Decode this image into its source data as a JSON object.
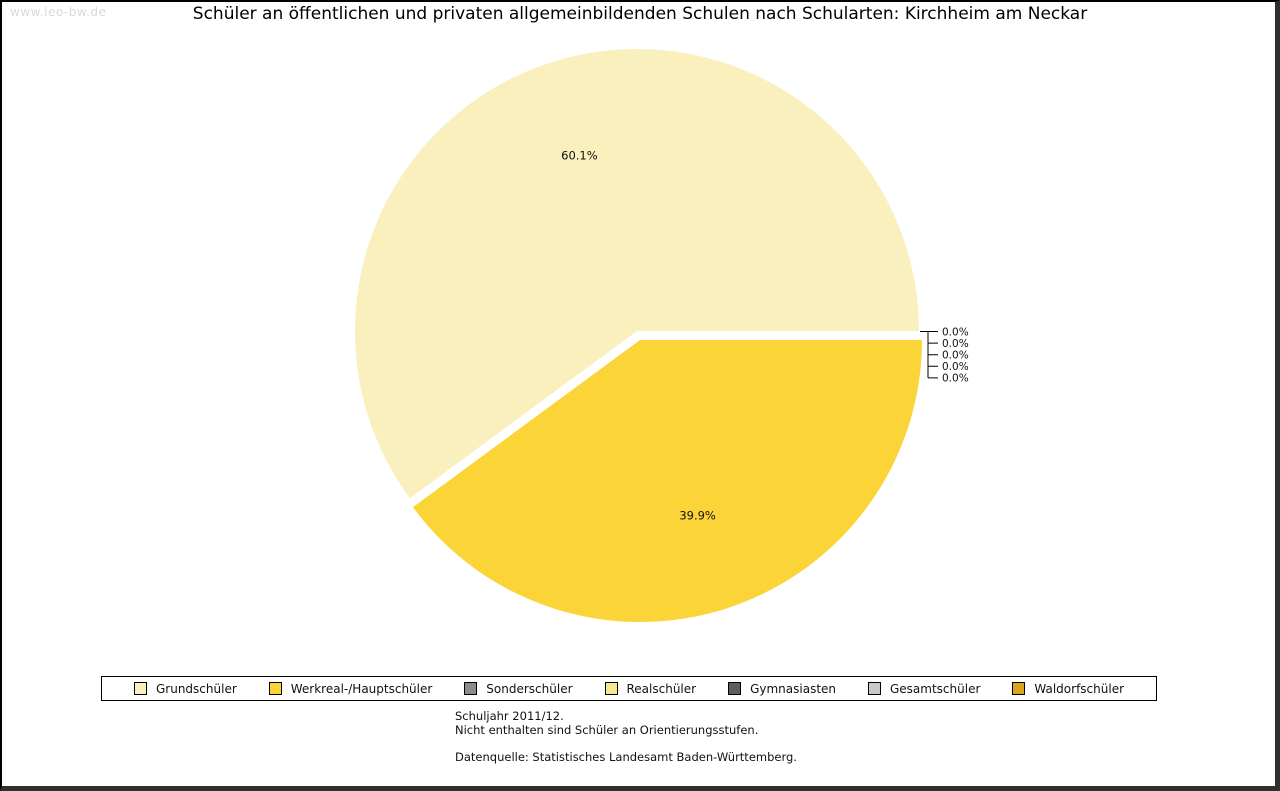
{
  "watermark": "www.leo-bw.de",
  "title": "Schüler an öffentlichen und privaten allgemeinbildenden Schulen nach Schularten: Kirchheim am Neckar",
  "chart_data": {
    "type": "pie",
    "title": "Schüler an öffentlichen und privaten allgemeinbildenden Schulen nach Schularten: Kirchheim am Neckar",
    "categories": [
      "Grundschüler",
      "Werkreal-/Hauptschüler",
      "Sonderschüler",
      "Realschüler",
      "Gymnasiasten",
      "Gesamtschüler",
      "Waldorfschüler"
    ],
    "values": [
      60.1,
      39.9,
      0.0,
      0.0,
      0.0,
      0.0,
      0.0
    ],
    "labels": [
      "60.1%",
      "39.9%",
      "0.0%",
      "0.0%",
      "0.0%",
      "0.0%",
      "0.0%"
    ],
    "colors": [
      "#FAF0BD",
      "#FBD438",
      "#8C8C8C",
      "#F8E88E",
      "#5E5E5E",
      "#C9C9C9",
      "#D8A51F"
    ],
    "legend_position": "bottom",
    "start_angle_deg": 0,
    "direction": "counterclockwise"
  },
  "footnotes": {
    "line1": "Schuljahr 2011/12.",
    "line2": "Nicht enthalten sind Schüler an Orientierungsstufen.",
    "source": "Datenquelle: Statistisches Landesamt Baden-Württemberg."
  }
}
